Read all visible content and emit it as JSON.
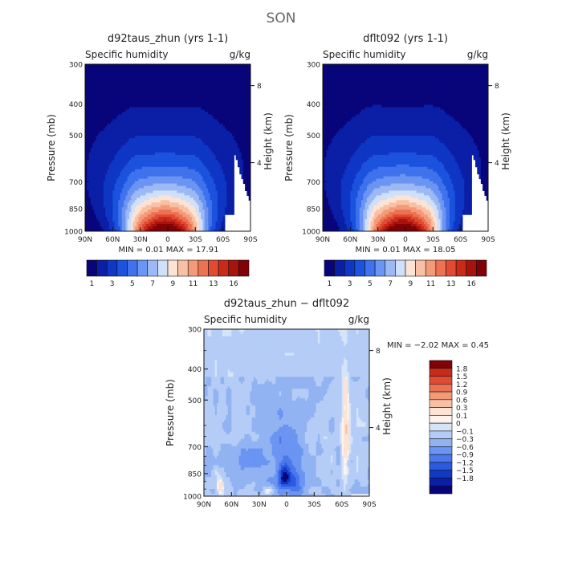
{
  "figure": {
    "season": "SON"
  },
  "chart_data": [
    {
      "type": "heatmap",
      "id": "panel_a",
      "title": "d92taus_zhun (yrs 1-1)",
      "subtitle_left": "Specific humidity",
      "units": "g/kg",
      "ylabel": "Pressure (mb)",
      "y2label": "Height (km)",
      "x_ticks": [
        "90N",
        "60N",
        "30N",
        "0",
        "30S",
        "60S",
        "90S"
      ],
      "x_tick_values": [
        90,
        60,
        30,
        0,
        -30,
        -60,
        -90
      ],
      "xlim": [
        90,
        -90
      ],
      "ylim": [
        1000,
        300
      ],
      "y_log": true,
      "y_ticks": [
        300,
        400,
        500,
        700,
        850,
        1000
      ],
      "y2_ticks": [
        {
          "label": "8",
          "p": 350
        },
        {
          "label": "4",
          "p": 610
        }
      ],
      "stats": {
        "min_label": "MIN =",
        "min": "0.01",
        "max_label": "MAX =",
        "max": "17.91"
      },
      "field": {
        "peak": 17.9,
        "peak_lat": 3,
        "peak_p": 985,
        "scale_height_km": 2.3,
        "width_sfc_deg": 28,
        "width_growth": 1.6,
        "top_floor": 0.01,
        "bg_value": 0.5
      }
    },
    {
      "type": "heatmap",
      "id": "panel_b",
      "title": "dflt092 (yrs 1-1)",
      "subtitle_left": "Specific humidity",
      "units": "g/kg",
      "ylabel": "Pressure (mb)",
      "y2label": "Height (km)",
      "x_ticks": [
        "90N",
        "60N",
        "30N",
        "0",
        "30S",
        "60S",
        "90S"
      ],
      "x_tick_values": [
        90,
        60,
        30,
        0,
        -30,
        -60,
        -90
      ],
      "xlim": [
        90,
        -90
      ],
      "ylim": [
        1000,
        300
      ],
      "y_log": true,
      "y_ticks": [
        300,
        400,
        500,
        700,
        850,
        1000
      ],
      "y2_ticks": [
        {
          "label": "8",
          "p": 350
        },
        {
          "label": "4",
          "p": 610
        }
      ],
      "stats": {
        "min_label": "MIN =",
        "min": "0.01",
        "max_label": "MAX =",
        "max": "18.05"
      },
      "field": {
        "peak": 18.05,
        "peak_lat": 3,
        "peak_p": 985,
        "scale_height_km": 2.3,
        "width_sfc_deg": 28,
        "width_growth": 1.6,
        "top_floor": 0.01,
        "bg_value": 0.5
      }
    },
    {
      "type": "heatmap",
      "id": "panel_diff",
      "title": "d92taus_zhun - dflt092",
      "subtitle_left": "Specific humidity",
      "units": "g/kg",
      "ylabel": "Pressure (mb)",
      "y2label": "Height (km)",
      "x_ticks": [
        "90N",
        "60N",
        "30N",
        "0",
        "30S",
        "60S",
        "90S"
      ],
      "x_tick_values": [
        90,
        60,
        30,
        0,
        -30,
        -60,
        -90
      ],
      "xlim": [
        90,
        -90
      ],
      "ylim": [
        1000,
        300
      ],
      "y_log": true,
      "y_ticks": [
        300,
        400,
        500,
        700,
        850,
        1000
      ],
      "y2_ticks": [
        {
          "label": "8",
          "p": 350
        },
        {
          "label": "4",
          "p": 610
        }
      ],
      "stats": {
        "min_label": "MIN =",
        "min": "-2.02",
        "max_label": "MAX =",
        "max": "0.45"
      },
      "field": {
        "min": -2.02,
        "max": 0.45
      }
    }
  ],
  "colorbar_abs": {
    "colors": [
      "#08057a",
      "#0a1fa6",
      "#0f36c4",
      "#1b52de",
      "#3f72ec",
      "#6b95f2",
      "#9db9f5",
      "#cfe0fa",
      "#fde3d4",
      "#f8c0a4",
      "#f39a79",
      "#ec7252",
      "#e14b33",
      "#c92a1a",
      "#a7130d",
      "#7f0206"
    ],
    "levels": [
      1,
      2,
      3,
      4,
      5,
      6,
      7,
      8,
      9,
      10,
      11,
      12,
      13,
      14,
      15,
      16
    ],
    "tick_labels": [
      "1",
      "3",
      "5",
      "7",
      "9",
      "11",
      "13",
      "16"
    ]
  },
  "colorbar_diff": {
    "colors": [
      "#7f0206",
      "#c92a1a",
      "#e14b33",
      "#ec7252",
      "#f39a79",
      "#f8c0a4",
      "#fde3d4",
      "#fdf3ec",
      "#d5e4f9",
      "#b5cdf6",
      "#92b3f2",
      "#6b95f2",
      "#4a78ec",
      "#2b5ae0",
      "#1238c6",
      "#0a1fa6",
      "#08057a"
    ],
    "levels": [
      1.8,
      1.5,
      1.2,
      0.9,
      0.6,
      0.3,
      0.1,
      0,
      -0.1,
      -0.3,
      -0.6,
      -0.9,
      -1.2,
      -1.5,
      -1.8
    ],
    "tick_labels": [
      "1.8",
      "1.5",
      "1.2",
      "0.9",
      "0.6",
      "0.3",
      "0.1",
      "0",
      "-0.1",
      "-0.3",
      "-0.6",
      "-0.9",
      "-1.2",
      "-1.5",
      "-1.8"
    ]
  }
}
